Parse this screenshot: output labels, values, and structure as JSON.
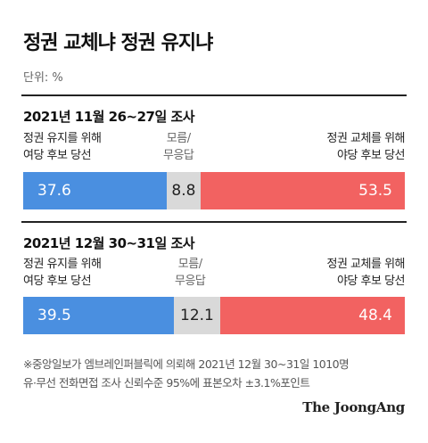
{
  "title": "정권 교체냐 정권 유지냐",
  "unit": "단위: %",
  "colors": {
    "maintain": "#4a8fe0",
    "undecided": "#d9d9d9",
    "change": "#f26261"
  },
  "chart_data": [
    {
      "type": "bar",
      "stacked": true,
      "title": "2021년 11월 26~27일 조사",
      "labels": {
        "maintain": [
          "정권 유지를 위해",
          "여당 후보 당선"
        ],
        "undecided": [
          "모름/",
          "무응답"
        ],
        "change": [
          "정권 교체를 위해",
          "야당 후보 당선"
        ]
      },
      "series": [
        {
          "key": "maintain",
          "value": 37.6,
          "text": "37.6"
        },
        {
          "key": "undecided",
          "value": 8.8,
          "text": "8.8"
        },
        {
          "key": "change",
          "value": 53.5,
          "text": "53.5"
        }
      ]
    },
    {
      "type": "bar",
      "stacked": true,
      "title": "2021년 12월 30~31일 조사",
      "labels": {
        "maintain": [
          "정권 유지를 위해",
          "여당 후보 당선"
        ],
        "undecided": [
          "모름/",
          "무응답"
        ],
        "change": [
          "정권 교체를 위해",
          "야당 후보 당선"
        ]
      },
      "series": [
        {
          "key": "maintain",
          "value": 39.5,
          "text": "39.5"
        },
        {
          "key": "undecided",
          "value": 12.1,
          "text": "12.1"
        },
        {
          "key": "change",
          "value": 48.4,
          "text": "48.4"
        }
      ]
    }
  ],
  "footnote": [
    "※중앙일보가 엠브레인퍼블릭에 의뢰해 2021년 12월 30~31일 1010명",
    "유·무선 전화면접 조사 신뢰수준 95%에 표본오차 ±3.1%포인트"
  ],
  "logo": "The JoongAng"
}
